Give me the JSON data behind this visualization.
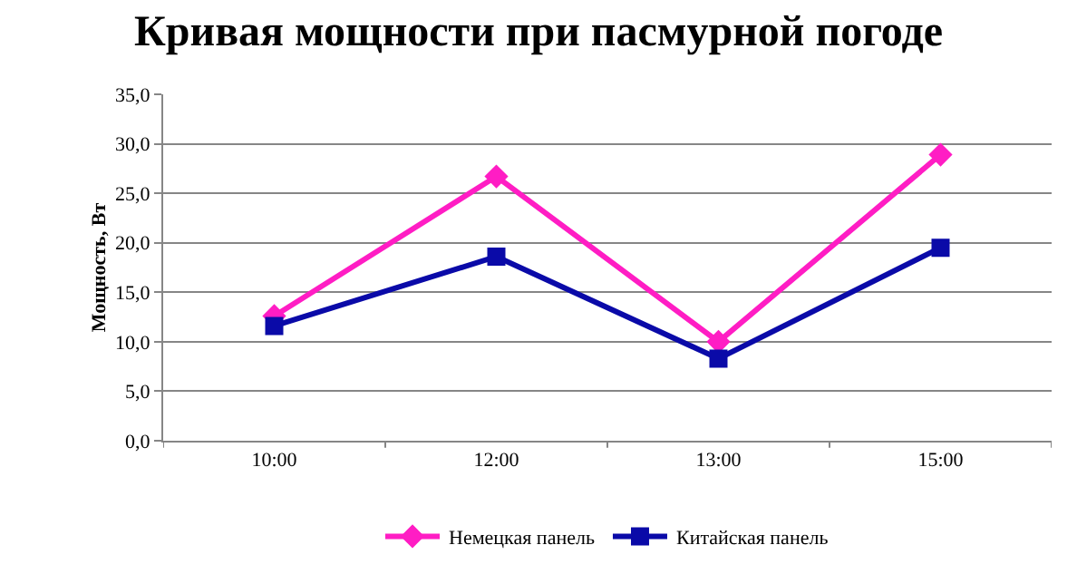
{
  "chart_data": {
    "type": "line",
    "title": "Кривая мощности при пасмурной погоде",
    "ylabel": "Мощность, Вт",
    "categories": [
      "10:00",
      "12:00",
      "13:00",
      "15:00"
    ],
    "series": [
      {
        "name": "Немецкая панель",
        "color": "#ff1dc4",
        "marker": "diamond",
        "values": [
          12.6,
          26.7,
          10.0,
          28.9
        ]
      },
      {
        "name": "Китайская панель",
        "color": "#0a0aa8",
        "marker": "square",
        "values": [
          11.6,
          18.6,
          8.3,
          19.5
        ]
      }
    ],
    "ylim": [
      0,
      35
    ],
    "yticks": [
      {
        "value": 0,
        "label": "0,0"
      },
      {
        "value": 5,
        "label": "5,0"
      },
      {
        "value": 10,
        "label": "10,0"
      },
      {
        "value": 15,
        "label": "15,0"
      },
      {
        "value": 20,
        "label": "20,0"
      },
      {
        "value": 25,
        "label": "25,0"
      },
      {
        "value": 30,
        "label": "30,0"
      },
      {
        "value": 35,
        "label": "35,0"
      }
    ],
    "grid": "y",
    "legend": "bottom",
    "line_style": "solid"
  }
}
